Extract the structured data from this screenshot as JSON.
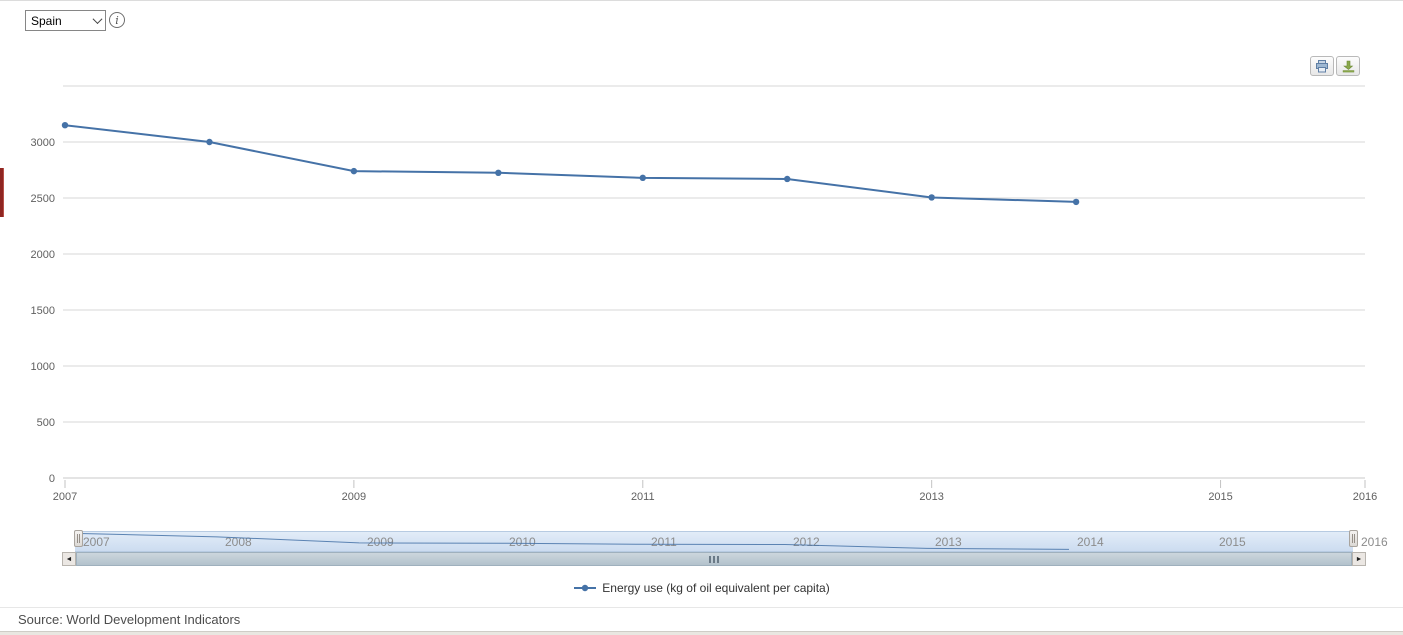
{
  "header": {
    "country_selector": {
      "value": "Spain",
      "options": [
        "Spain"
      ]
    },
    "info_icon": "info-icon"
  },
  "toolbar": {
    "print_icon": "printer-icon",
    "download_icon": "download-icon"
  },
  "chart_data": {
    "type": "line",
    "title": "",
    "xlabel": "",
    "ylabel": "",
    "x": [
      2007,
      2008,
      2009,
      2010,
      2011,
      2012,
      2013,
      2014
    ],
    "series": [
      {
        "name": "Energy use (kg of oil equivalent per capita)",
        "values": [
          3150,
          3000,
          2740,
          2725,
          2680,
          2670,
          2505,
          2465
        ],
        "color": "#4572a7"
      }
    ],
    "xlim": [
      2007,
      2016
    ],
    "ylim": [
      0,
      3500
    ],
    "ytick_step": 500,
    "ytick_label_max": 3000,
    "xtick_labels": [
      2007,
      2009,
      2011,
      2013,
      2015,
      2016
    ],
    "grid": true,
    "legend_position": "bottom-center"
  },
  "navigator": {
    "years": [
      2007,
      2008,
      2009,
      2010,
      2011,
      2012,
      2013,
      2014,
      2015,
      2016
    ],
    "selected_range": [
      2007,
      2016
    ],
    "value_window": [
      2350,
      3250
    ]
  },
  "scrollbar": {
    "left_arrow": "◄",
    "right_arrow": "►"
  },
  "legend": {
    "label": "Energy use (kg of oil equivalent per capita)"
  },
  "source": "Source: World Development Indicators",
  "colors": {
    "line": "#4572a7",
    "grid": "#d7d7d7",
    "axis_line": "#c8c8c8",
    "axis_label": "#606060",
    "nav_label": "#8c8c8c",
    "accent_red": "#8f2622"
  }
}
